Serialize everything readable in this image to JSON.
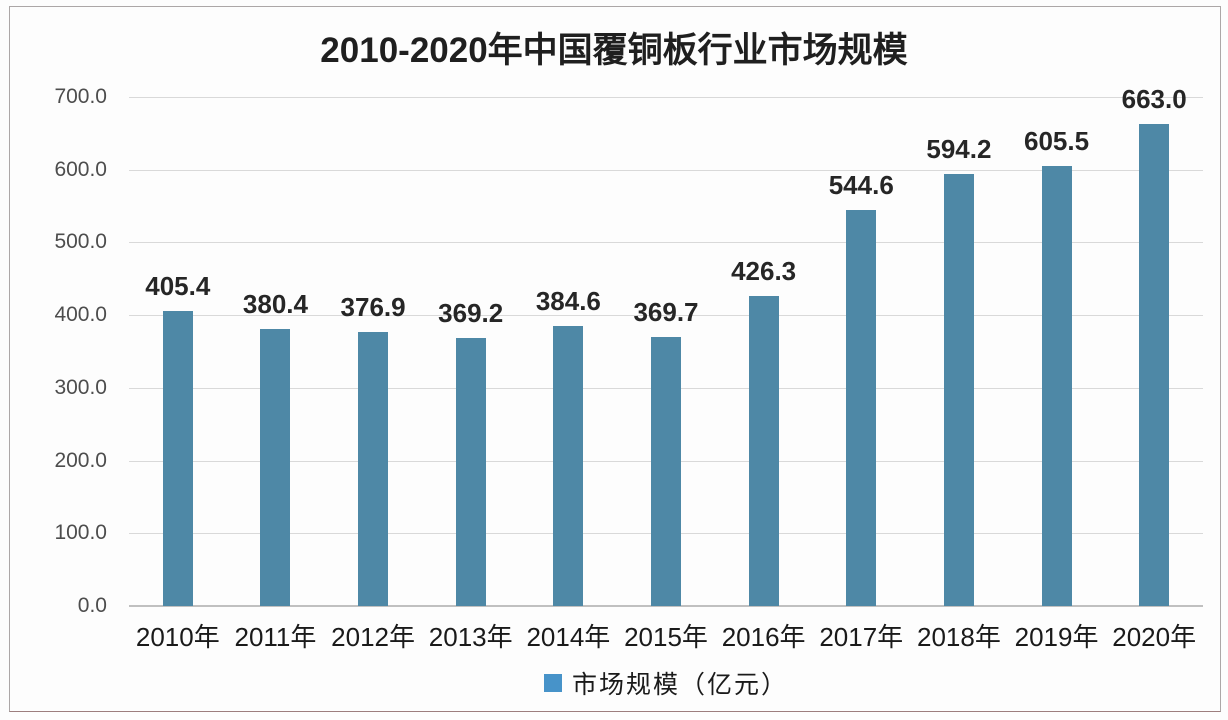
{
  "chart_data": {
    "type": "bar",
    "title": "2010-2020年中国覆铜板行业市场规模",
    "categories": [
      "2010年",
      "2011年",
      "2012年",
      "2013年",
      "2014年",
      "2015年",
      "2016年",
      "2017年",
      "2018年",
      "2019年",
      "2020年"
    ],
    "values": [
      405.4,
      380.4,
      376.9,
      369.2,
      384.6,
      369.7,
      426.3,
      544.6,
      594.2,
      605.5,
      663.0
    ],
    "value_labels": [
      "405.4",
      "380.4",
      "376.9",
      "369.2",
      "384.6",
      "369.7",
      "426.3",
      "544.6",
      "594.2",
      "605.5",
      "663.0"
    ],
    "legend": "市场规模（亿元）",
    "legend_position": "bottom",
    "xlabel": "",
    "ylabel": "",
    "ylim": [
      0,
      700
    ],
    "y_tick_step": 100,
    "y_ticks": [
      "700.0",
      "600.0",
      "500.0",
      "400.0",
      "300.0",
      "200.0",
      "100.0",
      "0.0"
    ],
    "grid": true,
    "colors": {
      "bar": "#4e88a6",
      "legend_swatch": "#4793c9",
      "gridline": "#d9d9d9",
      "axis_line": "#c0c0c0",
      "title_text": "#1f1f1f",
      "value_label_text": "#262626",
      "tick_text": "#4d4d4d",
      "background": "#fdfdfd"
    }
  }
}
